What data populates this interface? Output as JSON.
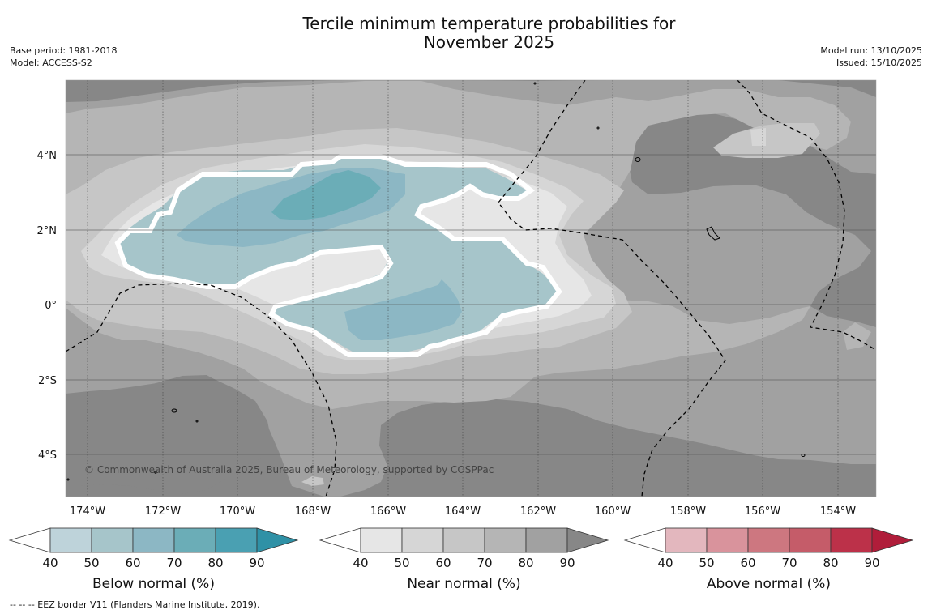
{
  "title_line1": "Tercile minimum temperature probabilities for",
  "title_line2": "November 2025",
  "base_period": "Base period: 1981-2018",
  "model": "Model: ACCESS-S2",
  "model_run": "Model run: 13/10/2025",
  "issued": "Issued: 15/10/2025",
  "copyright": "© Commonwealth of Australia 2025, Bureau of Meteorology, supported by COSPPac",
  "footer": "-- -- -- EEZ border V11 (Flanders Marine Institute, 2019).",
  "map": {
    "lon_labels": [
      "174°W",
      "172°W",
      "170°W",
      "168°W",
      "166°W",
      "164°W",
      "162°W",
      "160°W",
      "158°W",
      "156°W",
      "154°W"
    ],
    "lat_labels": [
      "4°N",
      "2°N",
      "0°",
      "2°S",
      "4°S"
    ]
  },
  "colorbars": [
    {
      "title": "Below normal (%)",
      "ticks": [
        "40",
        "50",
        "60",
        "70",
        "80",
        "90"
      ],
      "colors": [
        "#ffffff",
        "#bed3da",
        "#a6c5ca",
        "#8cb7c4",
        "#6badb7",
        "#4aa0b2",
        "#2f91a6"
      ]
    },
    {
      "title": "Near normal (%)",
      "ticks": [
        "40",
        "50",
        "60",
        "70",
        "80",
        "90"
      ],
      "colors": [
        "#ffffff",
        "#e6e6e6",
        "#d6d6d6",
        "#c6c6c6",
        "#b5b5b5",
        "#a1a1a1",
        "#878787"
      ]
    },
    {
      "title": "Above normal (%)",
      "ticks": [
        "40",
        "50",
        "60",
        "70",
        "80",
        "90"
      ],
      "colors": [
        "#ffffff",
        "#e3b7be",
        "#d9939c",
        "#cd7780",
        "#c55c69",
        "#bc3149",
        "#b01d3a"
      ]
    }
  ]
}
